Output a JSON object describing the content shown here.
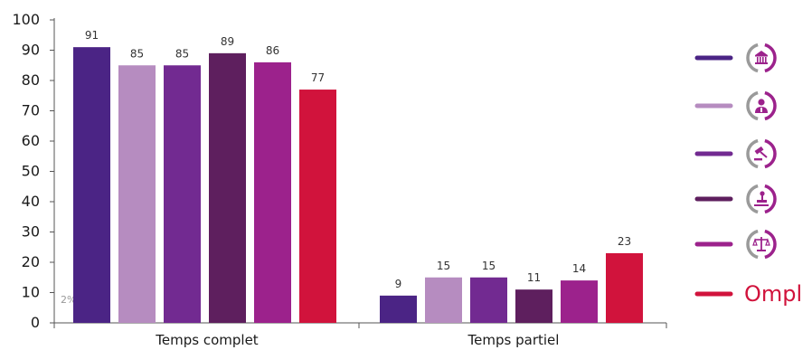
{
  "chart_data": {
    "type": "bar",
    "categories": [
      "Temps complet",
      "Temps partiel"
    ],
    "series": [
      {
        "values": [
          91,
          9
        ],
        "color": "#4b2485",
        "icon": "institution-icon"
      },
      {
        "values": [
          85,
          15
        ],
        "color": "#b68cc0",
        "icon": "person-icon"
      },
      {
        "values": [
          85,
          15
        ],
        "color": "#722a91",
        "icon": "gavel-icon"
      },
      {
        "values": [
          89,
          11
        ],
        "color": "#5e1f5e",
        "icon": "stamp-icon"
      },
      {
        "values": [
          86,
          14
        ],
        "color": "#9c228c",
        "icon": "scales-icon"
      },
      {
        "values": [
          77,
          23
        ],
        "color": "#d1133c",
        "brand": "Ompl"
      }
    ],
    "y_ticks": [
      "0",
      "10",
      "20",
      "30",
      "40",
      "50",
      "60",
      "70",
      "80",
      "90",
      "100"
    ],
    "ylim": [
      0,
      100
    ],
    "grid": false,
    "legend_position": "right",
    "stray_label": "2%",
    "icon_ring_colors": [
      "#9c228c",
      "#9a9a9a"
    ]
  }
}
